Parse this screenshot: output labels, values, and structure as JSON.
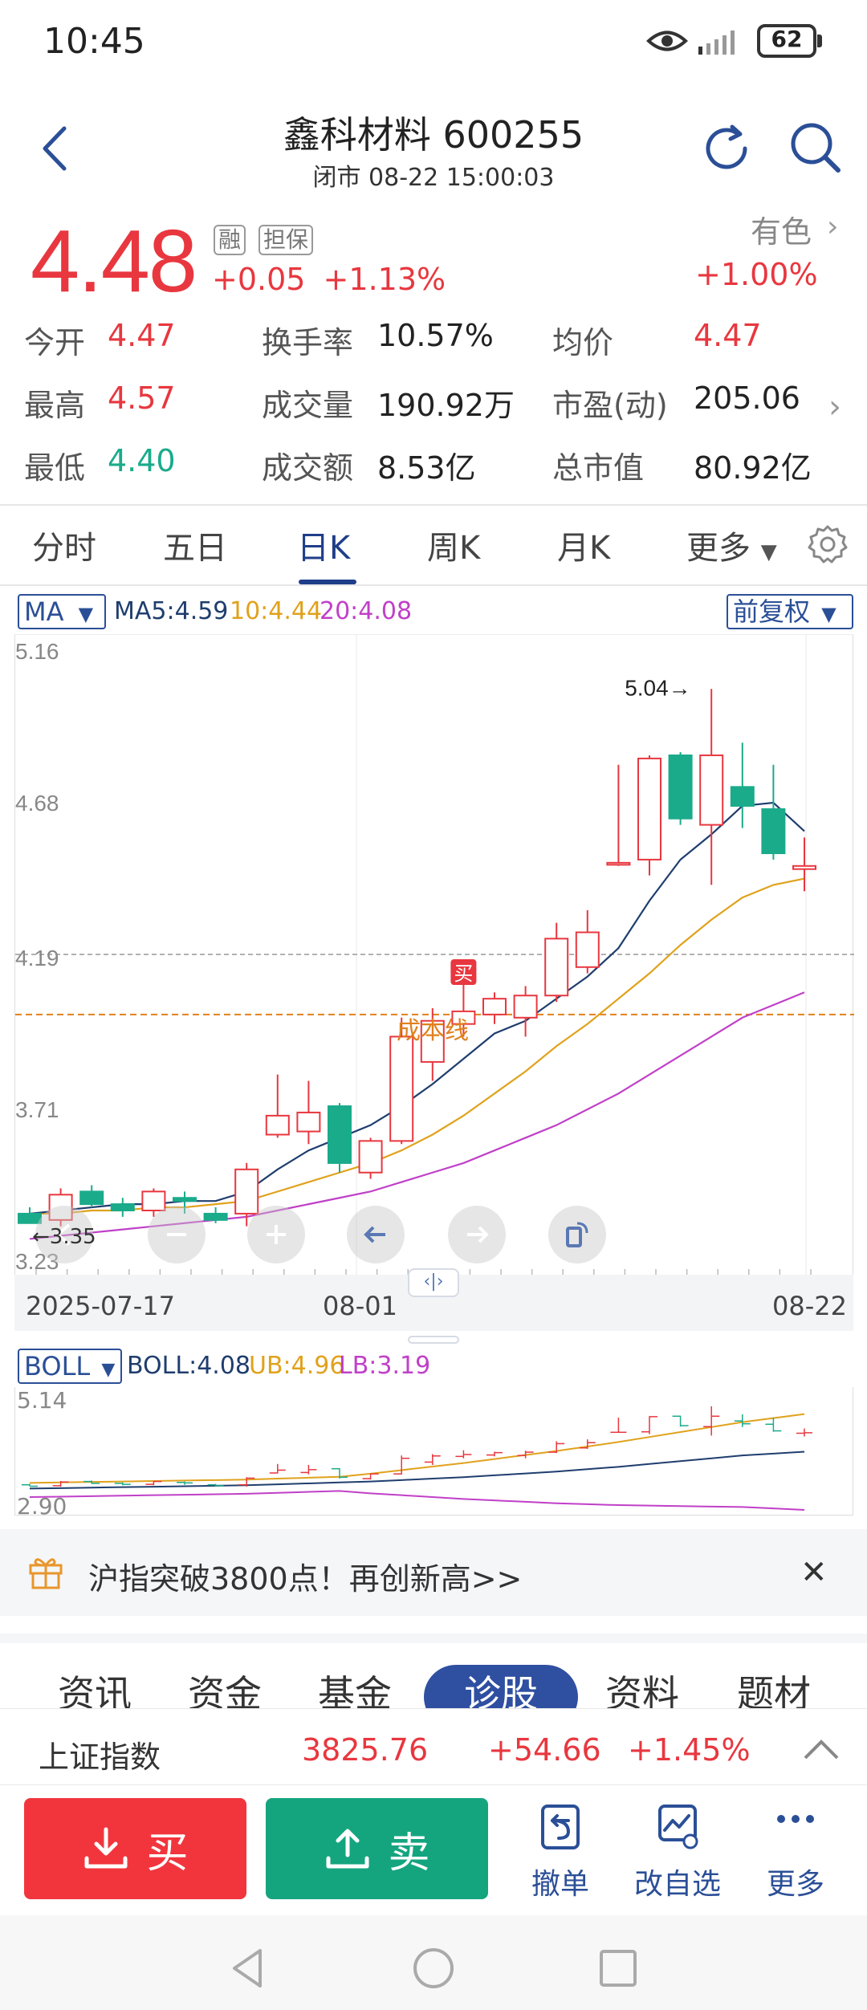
{
  "status_bar": {
    "time": "10:45",
    "battery": "62"
  },
  "header": {
    "title": "鑫科材料 600255",
    "market_status": "闭市 08-22 15:00:03"
  },
  "price": {
    "current": "4.48",
    "change": "+0.05",
    "change_pct": "+1.13%",
    "tags": [
      "融",
      "担保"
    ],
    "sector_name": "有色",
    "sector_pct": "+1.00%"
  },
  "quote": [
    [
      {
        "label": "今开",
        "value": "4.47",
        "color": "red"
      },
      {
        "label": "换手率",
        "value": "10.57%",
        "color": "dark"
      },
      {
        "label": "均价",
        "value": "4.47",
        "color": "red"
      }
    ],
    [
      {
        "label": "最高",
        "value": "4.57",
        "color": "red"
      },
      {
        "label": "成交量",
        "value": "190.92万",
        "color": "dark"
      },
      {
        "label": "市盈(动)",
        "value": "205.06",
        "color": "dark"
      }
    ],
    [
      {
        "label": "最低",
        "value": "4.40",
        "color": "green"
      },
      {
        "label": "成交额",
        "value": "8.53亿",
        "color": "dark"
      },
      {
        "label": "总市值",
        "value": "80.92亿",
        "color": "dark"
      }
    ]
  ],
  "period_tabs": [
    "分时",
    "五日",
    "日K",
    "周K",
    "月K",
    "更多"
  ],
  "selected_period": "日K",
  "ma_selector": "MA",
  "ma_legend": {
    "ma5": "MA5:4.59",
    "ma10": "10:4.44",
    "ma20": "20:4.08"
  },
  "fq_selector": "前复权",
  "main_chart": {
    "y_ticks": [
      "5.16",
      "4.68",
      "4.19",
      "3.71",
      "3.23"
    ],
    "high_marker": "5.04→",
    "low_marker": "←3.35",
    "buy_marker": "买",
    "cost_line_label": "成本线",
    "dates": [
      "2025-07-17",
      "08-01",
      "08-22"
    ]
  },
  "boll": {
    "selector": "BOLL",
    "boll": "BOLL:4.08",
    "ub": "UB:4.96",
    "lb": "LB:3.19",
    "y_ticks": [
      "5.14",
      "2.90"
    ]
  },
  "promo": {
    "text": "沪指突破3800点！再创新高>>"
  },
  "sub_tabs": [
    "资讯",
    "资金",
    "基金",
    "诊股",
    "资料",
    "题材"
  ],
  "index_bar": {
    "name": "上证指数",
    "value": "3825.76",
    "change": "+54.66",
    "pct": "+1.45%"
  },
  "trade": {
    "buy": "买",
    "sell": "卖",
    "cancel": "撤单",
    "watchlist": "改自选",
    "more": "更多"
  },
  "colors": {
    "up": "#e8373f",
    "down": "#1aab8b",
    "brand": "#2b4f97",
    "ma5": "#1f3e6e",
    "ma10": "#e0a21c",
    "ma20": "#c040c8",
    "cost_line": "#e0801c"
  },
  "chart_data": {
    "type": "candlestick",
    "candles": [
      {
        "o": 3.38,
        "c": 3.35,
        "h": 3.4,
        "l": 3.35
      },
      {
        "o": 3.36,
        "c": 3.44,
        "h": 3.46,
        "l": 3.34
      },
      {
        "o": 3.45,
        "c": 3.41,
        "h": 3.47,
        "l": 3.4
      },
      {
        "o": 3.41,
        "c": 3.39,
        "h": 3.43,
        "l": 3.37
      },
      {
        "o": 3.39,
        "c": 3.45,
        "h": 3.46,
        "l": 3.37
      },
      {
        "o": 3.43,
        "c": 3.42,
        "h": 3.45,
        "l": 3.38
      },
      {
        "o": 3.38,
        "c": 3.36,
        "h": 3.4,
        "l": 3.35
      },
      {
        "o": 3.38,
        "c": 3.52,
        "h": 3.54,
        "l": 3.34
      },
      {
        "o": 3.63,
        "c": 3.69,
        "h": 3.82,
        "l": 3.62
      },
      {
        "o": 3.64,
        "c": 3.7,
        "h": 3.8,
        "l": 3.6
      },
      {
        "o": 3.72,
        "c": 3.54,
        "h": 3.73,
        "l": 3.51
      },
      {
        "o": 3.51,
        "c": 3.61,
        "h": 3.62,
        "l": 3.49
      },
      {
        "o": 3.61,
        "c": 3.94,
        "h": 4.0,
        "l": 3.6
      },
      {
        "o": 3.86,
        "c": 3.99,
        "h": 4.03,
        "l": 3.8
      },
      {
        "o": 3.98,
        "c": 4.02,
        "h": 4.11,
        "l": 3.94
      },
      {
        "o": 4.01,
        "c": 4.06,
        "h": 4.08,
        "l": 3.98
      },
      {
        "o": 4.0,
        "c": 4.07,
        "h": 4.1,
        "l": 3.94
      },
      {
        "o": 4.07,
        "c": 4.25,
        "h": 4.3,
        "l": 4.05
      },
      {
        "o": 4.16,
        "c": 4.27,
        "h": 4.34,
        "l": 4.14
      },
      {
        "o": 4.49,
        "c": 4.49,
        "h": 4.8,
        "l": 4.48
      },
      {
        "o": 4.5,
        "c": 4.82,
        "h": 4.83,
        "l": 4.45
      },
      {
        "o": 4.83,
        "c": 4.63,
        "h": 4.84,
        "l": 4.61
      },
      {
        "o": 4.61,
        "c": 4.83,
        "h": 5.04,
        "l": 4.42
      },
      {
        "o": 4.73,
        "c": 4.67,
        "h": 4.87,
        "l": 4.6
      },
      {
        "o": 4.66,
        "c": 4.52,
        "h": 4.8,
        "l": 4.5
      },
      {
        "o": 4.47,
        "c": 4.48,
        "h": 4.57,
        "l": 4.4
      }
    ],
    "ma5": [
      3.38,
      3.39,
      3.4,
      3.41,
      3.41,
      3.42,
      3.42,
      3.45,
      3.52,
      3.58,
      3.62,
      3.66,
      3.72,
      3.79,
      3.87,
      3.95,
      3.99,
      4.06,
      4.13,
      4.22,
      4.37,
      4.5,
      4.58,
      4.67,
      4.68,
      4.59
    ],
    "ma10": [
      3.38,
      3.38,
      3.39,
      3.39,
      3.4,
      3.4,
      3.41,
      3.42,
      3.45,
      3.48,
      3.51,
      3.54,
      3.58,
      3.63,
      3.69,
      3.76,
      3.83,
      3.91,
      3.98,
      4.06,
      4.14,
      4.23,
      4.31,
      4.38,
      4.42,
      4.44
    ],
    "ma20": [
      3.3,
      3.31,
      3.32,
      3.33,
      3.34,
      3.35,
      3.36,
      3.37,
      3.39,
      3.41,
      3.43,
      3.45,
      3.48,
      3.51,
      3.54,
      3.58,
      3.62,
      3.66,
      3.71,
      3.76,
      3.82,
      3.88,
      3.94,
      4.0,
      4.04,
      4.08
    ],
    "y_range": [
      3.23,
      5.16
    ],
    "cost_line": 4.01,
    "dashed_ref": 4.2,
    "x_labels": [
      "2025-07-17",
      "08-01",
      "08-22"
    ]
  }
}
